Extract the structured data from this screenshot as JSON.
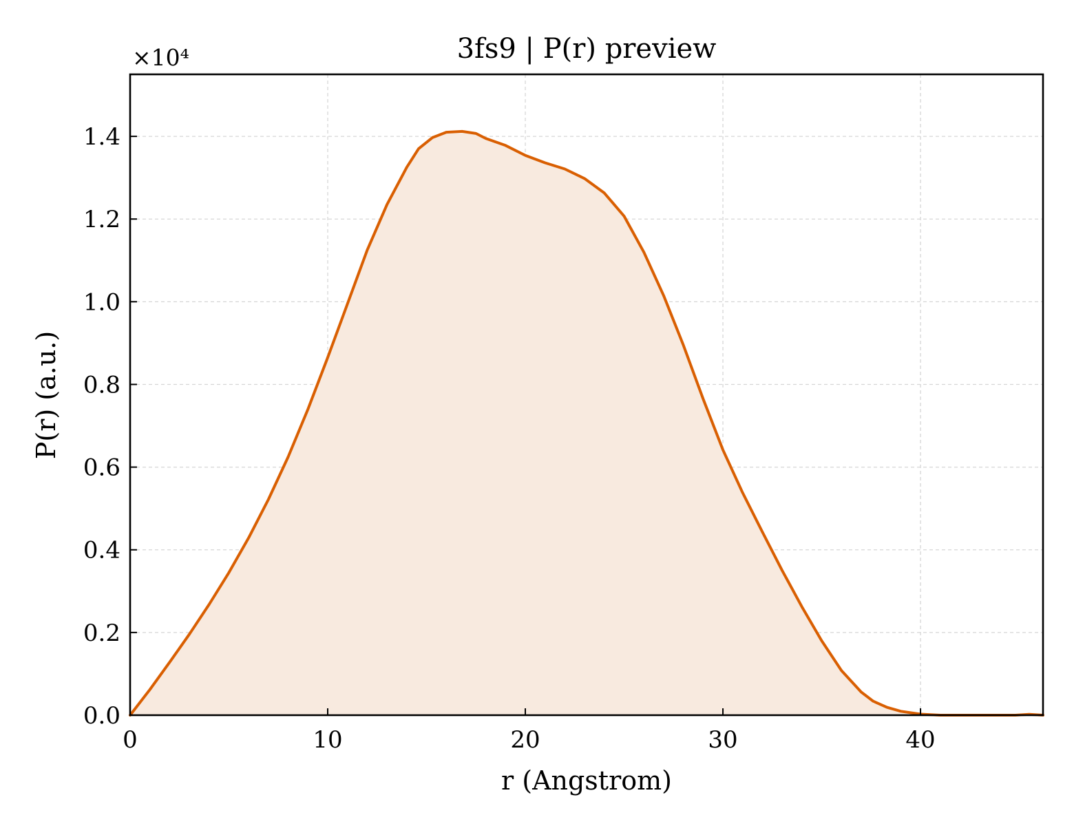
{
  "chart_data": {
    "type": "area",
    "title": "3fs9 | P(r) preview",
    "xlabel": "r (Angstrom)",
    "ylabel": "P(r) (a.u.)",
    "y_multiplier_label": "×10⁴",
    "y_scale": 10000,
    "xlim": [
      0,
      46.2
    ],
    "ylim": [
      0,
      15500
    ],
    "x_ticks": [
      0,
      10,
      20,
      30,
      40
    ],
    "x_tick_labels": [
      "0",
      "10",
      "20",
      "30",
      "40"
    ],
    "y_ticks": [
      0,
      2000,
      4000,
      6000,
      8000,
      10000,
      12000,
      14000
    ],
    "y_tick_labels": [
      "0.0",
      "0.2",
      "0.4",
      "0.6",
      "0.8",
      "1.0",
      "1.2",
      "1.4"
    ],
    "grid": true,
    "line_color": "#d95f02",
    "fill_color": "#f8eadf",
    "series": [
      {
        "x": [
          0,
          1,
          2,
          3,
          4,
          5,
          6,
          7,
          8,
          9,
          10,
          11,
          12,
          13,
          14,
          14.6,
          15.3,
          16,
          16.8,
          17.5,
          18,
          19,
          20,
          21,
          22,
          23,
          24,
          25,
          26,
          27,
          28,
          29,
          30,
          31,
          32,
          33,
          34,
          35,
          36,
          37,
          37.6,
          38.3,
          39,
          40,
          41,
          42,
          43,
          43.4,
          44,
          44.8,
          45.5,
          46.2
        ],
        "y": [
          0,
          620,
          1280,
          1960,
          2680,
          3450,
          4290,
          5220,
          6250,
          7400,
          8650,
          9950,
          11250,
          12350,
          13250,
          13700,
          13970,
          14100,
          14120,
          14070,
          13950,
          13780,
          13540,
          13360,
          13210,
          12980,
          12630,
          12070,
          11200,
          10150,
          8950,
          7650,
          6420,
          5380,
          4430,
          3500,
          2620,
          1800,
          1080,
          560,
          340,
          190,
          95,
          25,
          -50,
          -145,
          -280,
          -330,
          -300,
          -160,
          20,
          -160
        ]
      }
    ]
  }
}
